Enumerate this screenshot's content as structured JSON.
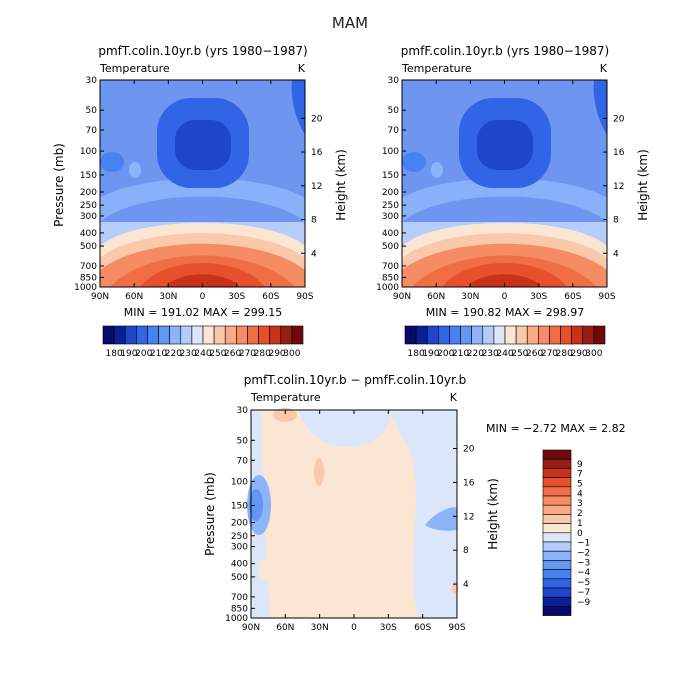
{
  "page": {
    "title": "MAM"
  },
  "colors": {
    "scale_top": [
      "#0a0a6e",
      "#0a1e96",
      "#1e46c8",
      "#3264e6",
      "#4682f0",
      "#6496f5",
      "#8cb4fa",
      "#b4cdfa",
      "#dce6fa",
      "#fae6d2",
      "#fac8aa",
      "#faaa82",
      "#f58c64",
      "#f06e46",
      "#e6502d",
      "#c83219",
      "#961e14",
      "#6e0a0a"
    ],
    "scale_diff": [
      "#0a0a6e",
      "#0a1e96",
      "#1e46c8",
      "#3264e6",
      "#4682f0",
      "#6496f5",
      "#8cb4fa",
      "#b4cdfa",
      "#dce6fa",
      "#fae6d2",
      "#fac8aa",
      "#faaa82",
      "#f58c64",
      "#f06e46",
      "#e6502d",
      "#c83219",
      "#961e14",
      "#6e0a0a"
    ]
  },
  "chart_data": [
    {
      "type": "heatmap",
      "title": "pmfT.colin.10yr.b (yrs 1980−1987)",
      "subtitle_left": "Temperature",
      "subtitle_right": "K",
      "ylabel": "Pressure (mb)",
      "ylabel_right": "Height (km)",
      "xticks": [
        "90N",
        "60N",
        "30N",
        "0",
        "30S",
        "60S",
        "90S"
      ],
      "yticks": [
        "30",
        "50",
        "70",
        "100",
        "150",
        "200",
        "250",
        "300",
        "400",
        "500",
        "700",
        "850",
        "1000"
      ],
      "yticks_right": [
        "20",
        "16",
        "12",
        "8",
        "4"
      ],
      "min_max": "MIN = 191.02   MAX = 299.15",
      "colorbar_labels": [
        "180",
        "190",
        "200",
        "210",
        "220",
        "230",
        "240",
        "250",
        "260",
        "270",
        "280",
        "290",
        "300"
      ]
    },
    {
      "type": "heatmap",
      "title": "pmfF.colin.10yr.b (yrs 1980−1987)",
      "subtitle_left": "Temperature",
      "subtitle_right": "K",
      "ylabel": "Pressure (mb)",
      "ylabel_right": "Height (km)",
      "xticks": [
        "90N",
        "60N",
        "30N",
        "0",
        "30S",
        "60S",
        "90S"
      ],
      "yticks": [
        "30",
        "50",
        "70",
        "100",
        "150",
        "200",
        "250",
        "300",
        "400",
        "500",
        "700",
        "850",
        "1000"
      ],
      "yticks_right": [
        "20",
        "16",
        "12",
        "8",
        "4"
      ],
      "min_max": "MIN = 190.82   MAX = 298.97",
      "colorbar_labels": [
        "180",
        "190",
        "200",
        "210",
        "220",
        "230",
        "240",
        "250",
        "260",
        "270",
        "280",
        "290",
        "300"
      ]
    },
    {
      "type": "heatmap",
      "title": "pmfT.colin.10yr.b − pmfF.colin.10yr.b",
      "subtitle_left": "Temperature",
      "subtitle_right": "K",
      "ylabel": "Pressure (mb)",
      "ylabel_right": "Height (km)",
      "xticks": [
        "90N",
        "60N",
        "30N",
        "0",
        "30S",
        "60S",
        "90S"
      ],
      "yticks": [
        "30",
        "50",
        "70",
        "100",
        "150",
        "200",
        "250",
        "300",
        "400",
        "500",
        "700",
        "850",
        "1000"
      ],
      "yticks_right": [
        "20",
        "16",
        "12",
        "8",
        "4"
      ],
      "min_max": "MIN =  −2.72   MAX =    2.82",
      "colorbar_labels": [
        "9",
        "7",
        "5",
        "4",
        "3",
        "2",
        "1",
        "0",
        "−1",
        "−2",
        "−3",
        "−4",
        "−5",
        "−7",
        "−9"
      ]
    }
  ]
}
